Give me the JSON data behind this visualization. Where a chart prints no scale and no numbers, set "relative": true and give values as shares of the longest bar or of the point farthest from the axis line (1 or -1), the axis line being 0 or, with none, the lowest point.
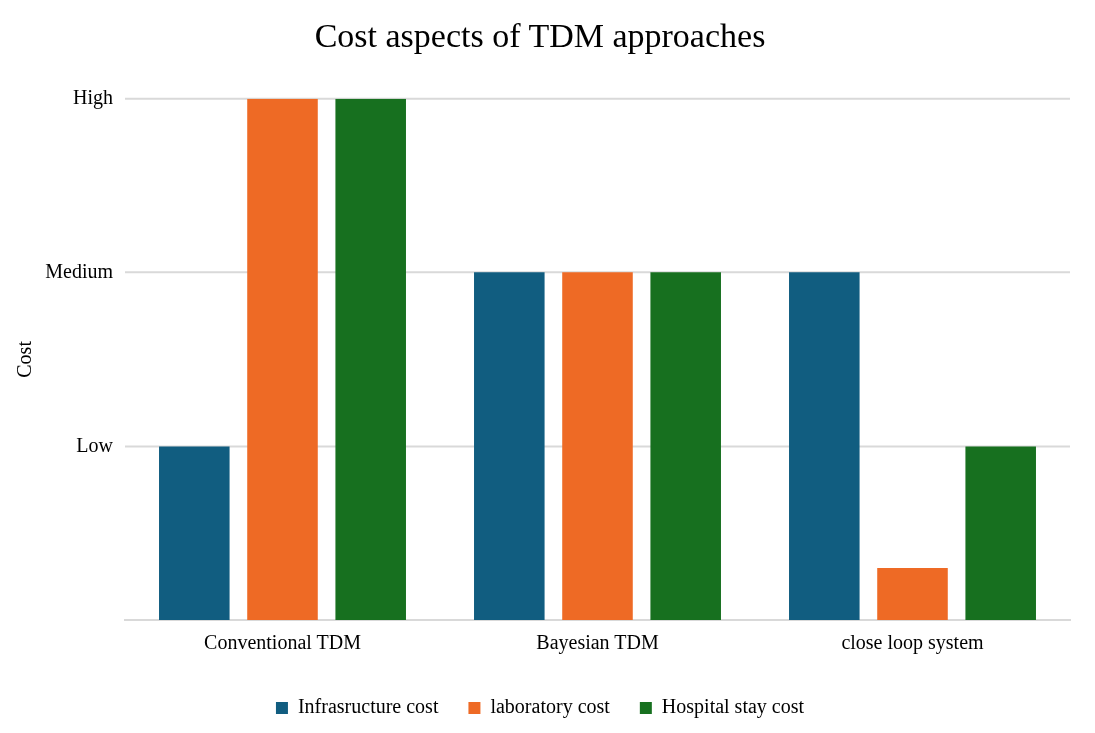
{
  "chart_data": {
    "type": "bar",
    "title": "Cost aspects of TDM approaches",
    "ylabel": "Cost",
    "categories": [
      "Conventional TDM",
      "Bayesian TDM",
      "close loop system"
    ],
    "relative": true,
    "series": [
      {
        "name": "Infrasructure cost",
        "color": "#115d80",
        "values": [
          0.333,
          0.667,
          0.667
        ]
      },
      {
        "name": "laboratory cost",
        "color": "#ee6a25",
        "values": [
          1,
          0.667,
          0.1
        ]
      },
      {
        "name": "Hospital stay cost",
        "color": "#17701f",
        "values": [
          1,
          0.667,
          0.333
        ]
      }
    ],
    "ref_lines": [
      {
        "axis": "y",
        "value": 0.333,
        "label": "Low",
        "color": "#d9d9d9"
      },
      {
        "axis": "y",
        "value": 0.667,
        "label": "Medium",
        "color": "#d9d9d9"
      },
      {
        "axis": "y",
        "value": 1,
        "label": "High",
        "color": "#d9d9d9"
      }
    ],
    "legend": "bottom"
  }
}
